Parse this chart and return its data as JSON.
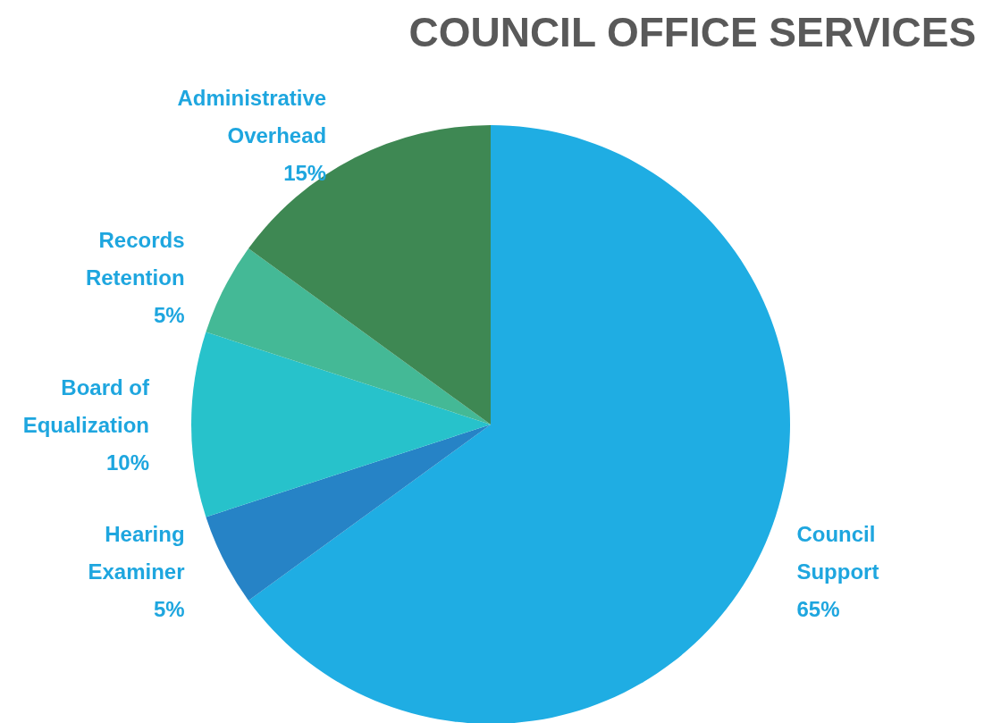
{
  "chart_data": {
    "type": "pie",
    "title": "COUNCIL OFFICE SERVICES",
    "categories": [
      "Council Support",
      "Hearing Examiner",
      "Board of Equalization",
      "Records Retention",
      "Administrative Overhead"
    ],
    "values": [
      65,
      5,
      10,
      5,
      15
    ],
    "colors": [
      "#1fade3",
      "#2683c6",
      "#27c2cb",
      "#44b996",
      "#3e8853"
    ],
    "value_labels": [
      "65%",
      "5%",
      "10%",
      "5%",
      "15%"
    ],
    "legend": false
  }
}
